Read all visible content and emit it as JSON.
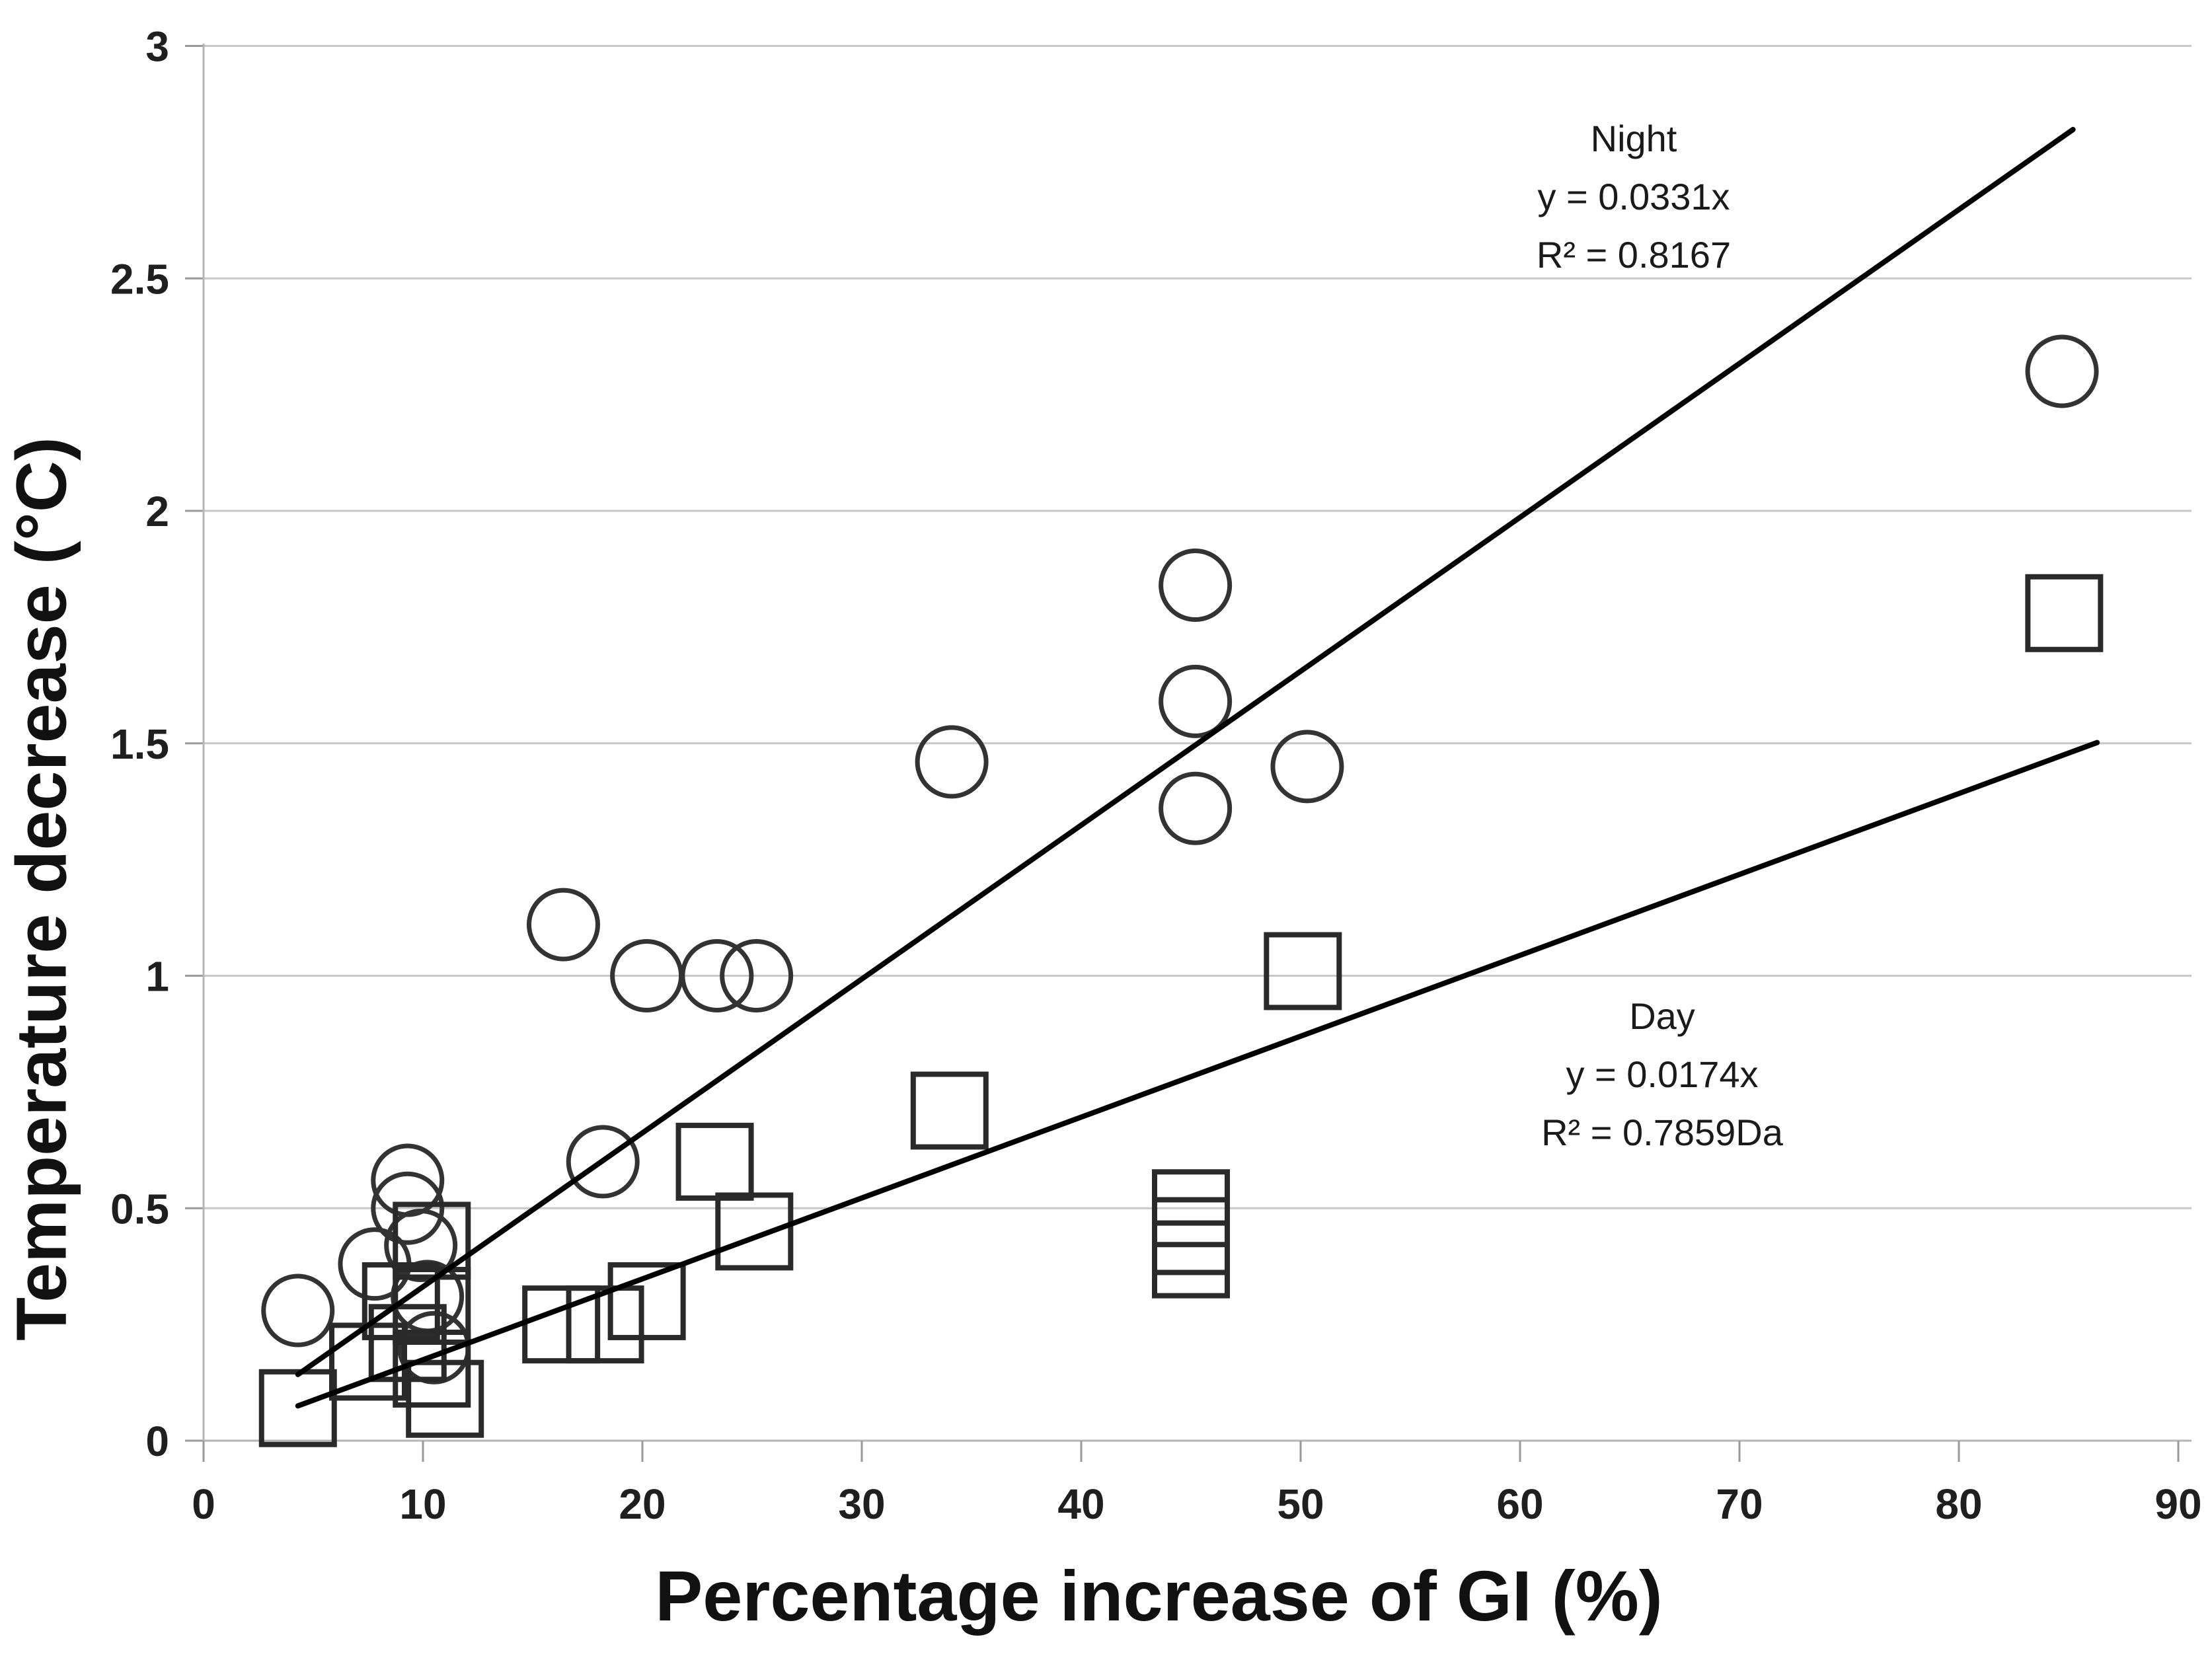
{
  "chart_data": {
    "type": "scatter",
    "title": "",
    "xlabel": "Percentage increase of GI (%)",
    "ylabel": "Temperature decrease  (°C)",
    "xlim": [
      0,
      90
    ],
    "ylim": [
      0,
      3
    ],
    "xticks": [
      0,
      10,
      20,
      30,
      40,
      50,
      60,
      70,
      80,
      90
    ],
    "yticks": [
      0,
      0.5,
      1,
      1.5,
      2,
      2.5,
      3
    ],
    "ytick_labels": [
      "0",
      "0.5",
      "1",
      "1.5",
      "2",
      "2.5",
      "3"
    ],
    "grid": "horizontal-only",
    "legend_position": "none",
    "series": [
      {
        "name": "Night",
        "marker": "circle",
        "points": [
          [
            4.3,
            0.28
          ],
          [
            7.8,
            0.38
          ],
          [
            9.3,
            0.56
          ],
          [
            9.3,
            0.5
          ],
          [
            9.9,
            0.42
          ],
          [
            10.2,
            0.31
          ],
          [
            10.5,
            0.2
          ],
          [
            16.4,
            1.11
          ],
          [
            18.2,
            0.6
          ],
          [
            20.2,
            1.0
          ],
          [
            23.4,
            1.0
          ],
          [
            25.2,
            1.0
          ],
          [
            34.1,
            1.46
          ],
          [
            45.2,
            1.84
          ],
          [
            45.2,
            1.59
          ],
          [
            45.2,
            1.36
          ],
          [
            50.3,
            1.45
          ],
          [
            84.7,
            2.3
          ]
        ]
      },
      {
        "name": "Day",
        "marker": "square",
        "points": [
          [
            4.3,
            0.07
          ],
          [
            7.5,
            0.17
          ],
          [
            9.0,
            0.3
          ],
          [
            9.3,
            0.21
          ],
          [
            10.4,
            0.43
          ],
          [
            10.4,
            0.29
          ],
          [
            10.4,
            0.155
          ],
          [
            11.0,
            0.09
          ],
          [
            16.3,
            0.25
          ],
          [
            18.3,
            0.25
          ],
          [
            20.2,
            0.3
          ],
          [
            23.3,
            0.6
          ],
          [
            25.1,
            0.45
          ],
          [
            34.0,
            0.71
          ],
          [
            45.0,
            0.5
          ],
          [
            45.0,
            0.44
          ],
          [
            45.0,
            0.39
          ],
          [
            50.1,
            1.01
          ],
          [
            84.8,
            1.78
          ]
        ]
      }
    ],
    "trendlines": [
      {
        "series": "Night",
        "slope": 0.0331,
        "x_start": 4.3,
        "x_end": 85.2
      },
      {
        "series": "Day",
        "slope": 0.0174,
        "x_start": 4.3,
        "x_end": 86.3
      }
    ],
    "annotations": {
      "night": {
        "title": "Night",
        "equation": "y = 0.0331x",
        "r2_label": "R² = 0.8167"
      },
      "day": {
        "title": "Day",
        "equation": "y = 0.0174x",
        "r2_label": "R² = 0.7859Da"
      }
    },
    "colors": {
      "background": "#ffffff",
      "circle_stroke": "#333333",
      "square_stroke": "#2a2a2a",
      "trendline": "#000000",
      "gridline": "#c8c8c8",
      "axis_line": "#b5b5b5",
      "tick_mark": "#9a9a9a",
      "text": "#1f1f1f"
    }
  }
}
